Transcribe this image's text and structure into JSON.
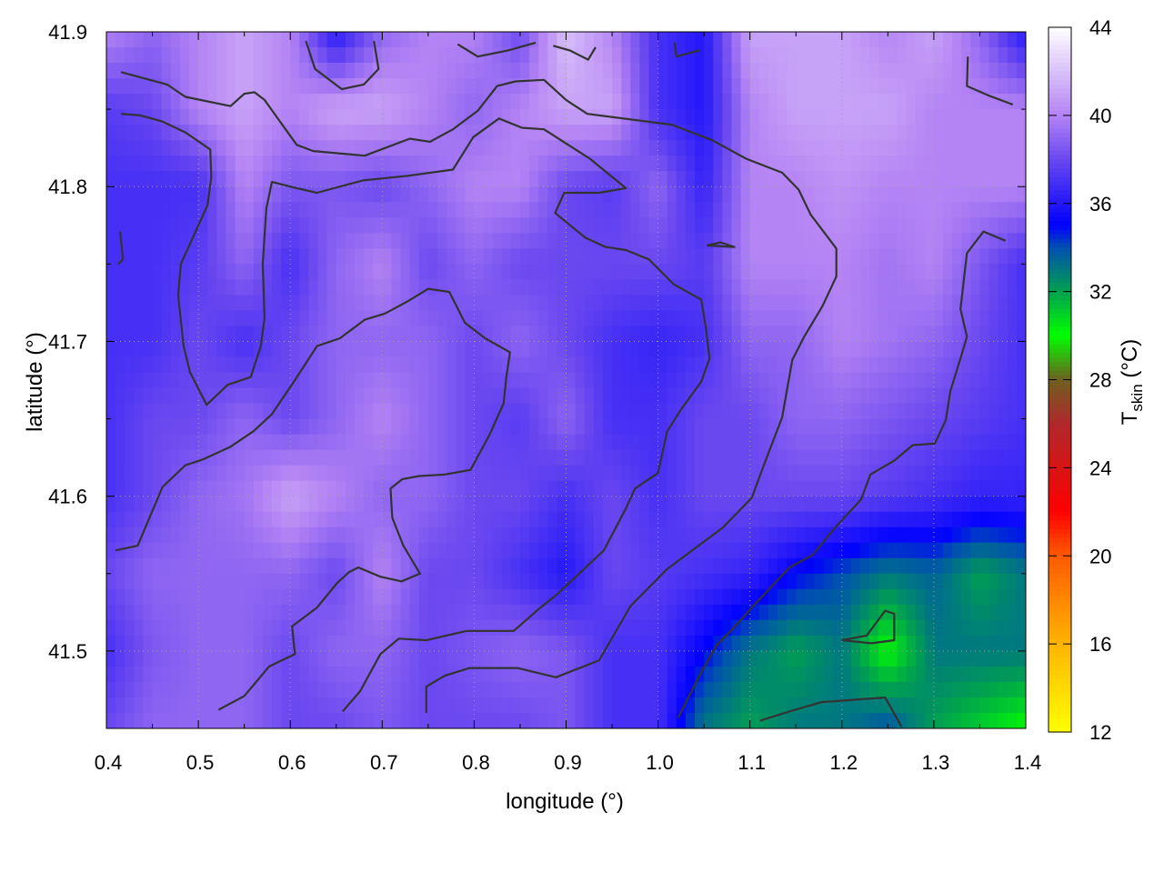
{
  "chart_data": {
    "type": "heatmap",
    "title": "",
    "xlabel": "longitude (°)",
    "ylabel": "latitude (°)",
    "colorbar_label_main": "T",
    "colorbar_label_sub": "skin",
    "colorbar_label_unit": " (°C)",
    "xlim": [
      0.4,
      1.4
    ],
    "ylim": [
      41.45,
      41.9
    ],
    "clim": [
      12,
      44
    ],
    "grid": true,
    "x_ticks": [
      "0.4",
      "0.5",
      "0.6",
      "0.7",
      "0.8",
      "0.9",
      "1.0",
      "1.1",
      "1.2",
      "1.3",
      "1.4"
    ],
    "y_ticks": [
      "41.5",
      "41.6",
      "41.7",
      "41.8",
      "41.9"
    ],
    "colorbar_ticks": [
      "12",
      "16",
      "20",
      "24",
      "28",
      "32",
      "36",
      "40",
      "44"
    ],
    "colormap": [
      {
        "v": 12,
        "c": "#ffff00"
      },
      {
        "v": 16,
        "c": "#ffb400"
      },
      {
        "v": 20,
        "c": "#ff5a00"
      },
      {
        "v": 22,
        "c": "#ff0000"
      },
      {
        "v": 24,
        "c": "#d81414"
      },
      {
        "v": 26,
        "c": "#b0282c"
      },
      {
        "v": 28,
        "c": "#6e6020"
      },
      {
        "v": 30,
        "c": "#00ff00"
      },
      {
        "v": 32,
        "c": "#00a050"
      },
      {
        "v": 34,
        "c": "#0050b0"
      },
      {
        "v": 35,
        "c": "#0000ff"
      },
      {
        "v": 38,
        "c": "#6a48f0"
      },
      {
        "v": 40,
        "c": "#b484f4"
      },
      {
        "v": 44,
        "c": "#ffffff"
      }
    ],
    "grid_lon": [
      0.4,
      0.45,
      0.5,
      0.55,
      0.6,
      0.65,
      0.7,
      0.75,
      0.8,
      0.85,
      0.9,
      0.95,
      1.0,
      1.05,
      1.1,
      1.15,
      1.2,
      1.25,
      1.3,
      1.35,
      1.4
    ],
    "grid_lat": [
      41.9,
      41.85,
      41.8,
      41.75,
      41.7,
      41.65,
      41.6,
      41.55,
      41.5,
      41.45
    ],
    "values": [
      [
        40,
        39,
        40,
        41,
        40,
        36,
        39,
        40,
        40,
        38,
        42,
        40,
        37,
        36,
        41,
        41,
        41,
        40,
        41,
        39,
        36
      ],
      [
        37.5,
        38,
        40,
        41,
        40,
        41,
        41,
        40,
        39,
        40,
        41,
        41,
        37,
        36,
        40,
        41,
        41,
        41,
        40,
        40,
        40
      ],
      [
        37,
        37,
        37,
        40,
        38.5,
        38.5,
        38,
        39,
        40,
        40,
        38,
        37.5,
        39,
        36.5,
        40,
        40,
        40.5,
        40,
        40,
        40,
        40
      ],
      [
        37,
        37,
        37.5,
        39,
        37,
        39,
        40,
        38,
        39,
        38,
        38,
        38,
        38,
        37.5,
        40,
        40,
        40,
        39.5,
        40,
        38.5,
        37
      ],
      [
        37,
        37,
        38,
        37,
        38,
        39,
        39,
        39,
        38,
        39,
        38,
        37,
        36.5,
        37,
        39,
        39,
        40,
        39.5,
        39,
        38,
        37
      ],
      [
        37,
        38,
        38,
        39,
        38,
        39,
        40,
        39,
        38,
        37.5,
        39,
        37,
        37,
        38,
        38,
        39,
        39,
        38.5,
        38,
        37.5,
        37
      ],
      [
        37,
        38,
        39,
        39.5,
        41,
        40,
        39,
        39,
        38,
        38,
        37,
        38,
        37,
        38,
        38,
        38,
        38,
        37.5,
        37,
        36.5,
        36.5
      ],
      [
        38,
        39,
        39,
        39,
        39,
        38,
        40,
        38,
        38,
        37,
        36,
        38,
        37.5,
        37,
        36.5,
        35,
        34,
        33,
        33.5,
        32,
        33
      ],
      [
        37,
        38.5,
        39,
        39,
        38,
        39,
        39,
        38,
        38.5,
        39,
        38.5,
        37,
        37,
        35,
        33,
        32,
        33,
        30,
        33,
        33,
        33
      ],
      [
        38,
        39,
        39,
        39,
        38,
        38,
        38.5,
        38,
        38,
        38,
        38.5,
        37,
        37,
        33,
        32,
        33,
        33,
        34,
        32,
        31,
        30
      ]
    ],
    "contours": [
      [
        [
          0.416,
          41.874
        ],
        [
          0.466,
          41.866
        ],
        [
          0.486,
          41.858
        ],
        [
          0.535,
          41.852
        ],
        [
          0.55,
          41.86
        ],
        [
          0.561,
          41.861
        ],
        [
          0.572,
          41.856
        ],
        [
          0.607,
          41.827
        ],
        [
          0.625,
          41.823
        ],
        [
          0.681,
          41.82
        ],
        [
          0.73,
          41.831
        ],
        [
          0.752,
          41.829
        ],
        [
          0.777,
          41.837
        ],
        [
          0.804,
          41.849
        ],
        [
          0.825,
          41.865
        ],
        [
          0.845,
          41.868
        ],
        [
          0.876,
          41.869
        ],
        [
          0.9,
          41.856
        ],
        [
          0.923,
          41.847
        ],
        [
          1.015,
          41.84
        ],
        [
          1.059,
          41.83
        ],
        [
          1.096,
          41.818
        ],
        [
          1.135,
          41.809
        ],
        [
          1.153,
          41.798
        ],
        [
          1.166,
          41.782
        ],
        [
          1.194,
          41.76
        ],
        [
          1.194,
          41.742
        ],
        [
          1.179,
          41.723
        ],
        [
          1.159,
          41.703
        ],
        [
          1.146,
          41.688
        ],
        [
          1.135,
          41.651
        ],
        [
          1.115,
          41.62
        ],
        [
          1.102,
          41.599
        ],
        [
          1.071,
          41.58
        ],
        [
          1.044,
          41.568
        ],
        [
          1.01,
          41.553
        ],
        [
          0.97,
          41.529
        ],
        [
          0.936,
          41.494
        ],
        [
          0.889,
          41.483
        ],
        [
          0.847,
          41.489
        ],
        [
          0.795,
          41.489
        ],
        [
          0.768,
          41.484
        ],
        [
          0.748,
          41.477
        ],
        [
          0.748,
          41.46
        ]
      ],
      [
        [
          0.416,
          41.847
        ],
        [
          0.437,
          41.846
        ],
        [
          0.461,
          41.842
        ],
        [
          0.486,
          41.835
        ],
        [
          0.513,
          41.824
        ],
        [
          0.514,
          41.806
        ],
        [
          0.51,
          41.788
        ],
        [
          0.481,
          41.75
        ],
        [
          0.478,
          41.73
        ],
        [
          0.484,
          41.697
        ],
        [
          0.491,
          41.68
        ],
        [
          0.509,
          41.659
        ],
        [
          0.532,
          41.672
        ],
        [
          0.557,
          41.677
        ],
        [
          0.568,
          41.697
        ],
        [
          0.572,
          41.715
        ],
        [
          0.57,
          41.75
        ],
        [
          0.574,
          41.786
        ],
        [
          0.58,
          41.803
        ],
        [
          0.607,
          41.799
        ],
        [
          0.629,
          41.796
        ],
        [
          0.679,
          41.804
        ],
        [
          0.728,
          41.807
        ],
        [
          0.777,
          41.811
        ],
        [
          0.799,
          41.832
        ],
        [
          0.827,
          41.844
        ],
        [
          0.852,
          41.838
        ],
        [
          0.876,
          41.837
        ],
        [
          0.926,
          41.818
        ],
        [
          0.965,
          41.799
        ],
        [
          0.936,
          41.796
        ],
        [
          0.898,
          41.796
        ],
        [
          0.888,
          41.783
        ],
        [
          0.921,
          41.767
        ],
        [
          0.943,
          41.761
        ],
        [
          0.965,
          41.759
        ],
        [
          0.99,
          41.753
        ],
        [
          1.017,
          41.737
        ],
        [
          1.047,
          41.727
        ],
        [
          1.052,
          41.709
        ],
        [
          1.056,
          41.689
        ],
        [
          1.047,
          41.674
        ],
        [
          1.025,
          41.656
        ],
        [
          1.01,
          41.642
        ],
        [
          1.0,
          41.615
        ],
        [
          0.99,
          41.611
        ],
        [
          0.975,
          41.605
        ],
        [
          0.965,
          41.592
        ],
        [
          0.941,
          41.565
        ],
        [
          0.916,
          41.551
        ],
        [
          0.889,
          41.536
        ],
        [
          0.872,
          41.528
        ],
        [
          0.843,
          41.513
        ],
        [
          0.792,
          41.513
        ],
        [
          0.748,
          41.507
        ],
        [
          0.718,
          41.508
        ],
        [
          0.698,
          41.498
        ],
        [
          0.676,
          41.474
        ],
        [
          0.657,
          41.461
        ]
      ],
      [
        [
          0.41,
          41.565
        ],
        [
          0.434,
          41.568
        ],
        [
          0.461,
          41.606
        ],
        [
          0.486,
          41.62
        ],
        [
          0.506,
          41.624
        ],
        [
          0.535,
          41.632
        ],
        [
          0.56,
          41.642
        ],
        [
          0.58,
          41.653
        ],
        [
          0.605,
          41.675
        ],
        [
          0.629,
          41.697
        ],
        [
          0.654,
          41.702
        ],
        [
          0.681,
          41.714
        ],
        [
          0.703,
          41.718
        ],
        [
          0.728,
          41.726
        ],
        [
          0.75,
          41.734
        ],
        [
          0.773,
          41.732
        ],
        [
          0.79,
          41.712
        ],
        [
          0.812,
          41.702
        ],
        [
          0.839,
          41.693
        ],
        [
          0.835,
          41.677
        ],
        [
          0.832,
          41.66
        ],
        [
          0.817,
          41.64
        ],
        [
          0.796,
          41.617
        ],
        [
          0.768,
          41.614
        ],
        [
          0.74,
          41.613
        ],
        [
          0.722,
          41.611
        ],
        [
          0.709,
          41.605
        ],
        [
          0.711,
          41.586
        ],
        [
          0.723,
          41.568
        ],
        [
          0.741,
          41.55
        ],
        [
          0.721,
          41.545
        ],
        [
          0.698,
          41.548
        ],
        [
          0.674,
          41.554
        ],
        [
          0.664,
          41.551
        ],
        [
          0.651,
          41.544
        ],
        [
          0.629,
          41.528
        ],
        [
          0.602,
          41.516
        ],
        [
          0.605,
          41.498
        ],
        [
          0.577,
          41.49
        ],
        [
          0.55,
          41.471
        ],
        [
          0.522,
          41.462
        ]
      ],
      [
        [
          0.617,
          41.894
        ],
        [
          0.627,
          41.876
        ],
        [
          0.656,
          41.863
        ],
        [
          0.68,
          41.866
        ],
        [
          0.696,
          41.876
        ],
        [
          0.691,
          41.894
        ]
      ],
      [
        [
          0.782,
          41.892
        ],
        [
          0.804,
          41.884
        ],
        [
          0.837,
          41.888
        ],
        [
          0.867,
          41.893
        ]
      ],
      [
        [
          0.886,
          41.891
        ],
        [
          0.904,
          41.888
        ],
        [
          0.924,
          41.882
        ],
        [
          0.932,
          41.89
        ]
      ],
      [
        [
          1.018,
          41.893
        ],
        [
          1.02,
          41.884
        ],
        [
          1.045,
          41.888
        ]
      ],
      [
        [
          1.337,
          41.884
        ],
        [
          1.336,
          41.865
        ],
        [
          1.359,
          41.859
        ],
        [
          1.386,
          41.853
        ]
      ],
      [
        [
          0.415,
          41.771
        ],
        [
          0.418,
          41.753
        ],
        [
          0.413,
          41.75
        ]
      ],
      [
        [
          1.378,
          41.765
        ],
        [
          1.354,
          41.771
        ],
        [
          1.336,
          41.757
        ],
        [
          1.329,
          41.721
        ],
        [
          1.336,
          41.703
        ],
        [
          1.329,
          41.689
        ],
        [
          1.318,
          41.668
        ],
        [
          1.313,
          41.649
        ],
        [
          1.301,
          41.634
        ],
        [
          1.277,
          41.633
        ],
        [
          1.257,
          41.623
        ],
        [
          1.231,
          41.614
        ],
        [
          1.221,
          41.598
        ],
        [
          1.193,
          41.58
        ],
        [
          1.168,
          41.562
        ],
        [
          1.143,
          41.554
        ],
        [
          1.113,
          41.535
        ],
        [
          1.079,
          41.513
        ],
        [
          1.064,
          41.504
        ],
        [
          1.044,
          41.483
        ],
        [
          1.022,
          41.457
        ]
      ],
      [
        [
          1.111,
          41.455
        ],
        [
          1.143,
          41.461
        ],
        [
          1.178,
          41.467
        ],
        [
          1.247,
          41.47
        ],
        [
          1.265,
          41.451
        ]
      ],
      [
        [
          1.2,
          41.507
        ],
        [
          1.227,
          41.51
        ],
        [
          1.247,
          41.526
        ],
        [
          1.257,
          41.524
        ],
        [
          1.257,
          41.507
        ],
        [
          1.232,
          41.505
        ],
        [
          1.2,
          41.507
        ]
      ],
      [
        [
          1.053,
          41.762
        ],
        [
          1.068,
          41.764
        ],
        [
          1.083,
          41.761
        ],
        [
          1.053,
          41.762
        ]
      ]
    ],
    "contour_color": "#333333"
  }
}
